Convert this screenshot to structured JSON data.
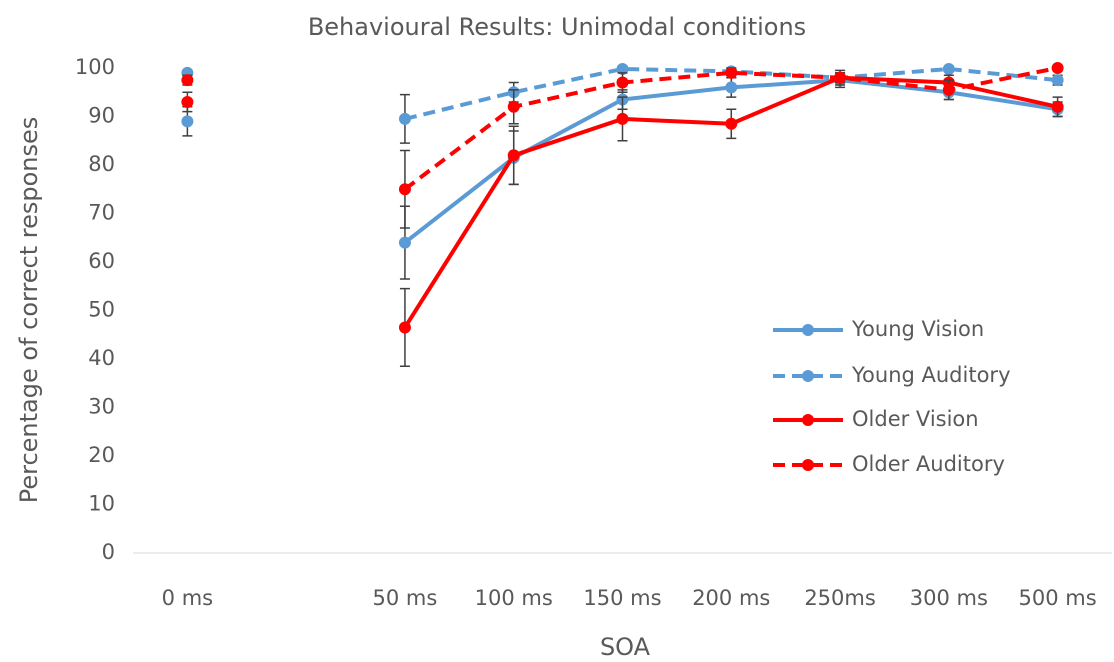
{
  "chart_data": {
    "type": "line",
    "title": "Behavioural Results: Unimodal conditions",
    "x_label": "SOA",
    "y_label": "Percentage of correct responses",
    "categories": [
      "0 ms",
      null,
      "50 ms",
      "100 ms",
      "150 ms",
      "200 ms",
      "250ms",
      "300 ms",
      "500 ms"
    ],
    "series": [
      {
        "name": "Young Vision",
        "color": "#5b9bd5",
        "dashed": false,
        "values": [
          89,
          null,
          64,
          81.5,
          93.5,
          96,
          97.5,
          95,
          91.5
        ],
        "errors": [
          3,
          null,
          7.5,
          5.5,
          2,
          2,
          1.5,
          1.5,
          1.5
        ]
      },
      {
        "name": "Young Auditory",
        "color": "#5b9bd5",
        "dashed": true,
        "values": [
          99,
          null,
          89.5,
          95,
          99.8,
          99.3,
          98,
          99.8,
          97.5
        ],
        "errors": [
          0.5,
          null,
          5,
          2,
          0.3,
          0.5,
          1,
          0.3,
          1
        ]
      },
      {
        "name": "Older Vision",
        "color": "#ff0000",
        "dashed": false,
        "values": [
          93,
          null,
          46.5,
          82,
          89.5,
          88.5,
          98,
          97,
          92
        ],
        "errors": [
          2,
          null,
          8,
          6,
          4.5,
          3,
          1.5,
          1.5,
          2
        ]
      },
      {
        "name": "Older Auditory",
        "color": "#ff0000",
        "dashed": true,
        "values": [
          97.5,
          null,
          75,
          92,
          97,
          99,
          98,
          95.5,
          100
        ],
        "errors": [
          1,
          null,
          8,
          3.5,
          2,
          1,
          1,
          2,
          0.5
        ]
      }
    ],
    "ylim": [
      0,
      100
    ],
    "yticks": [
      0,
      10,
      20,
      30,
      40,
      50,
      60,
      70,
      80,
      90,
      100
    ],
    "grid": false,
    "legend": "right"
  }
}
